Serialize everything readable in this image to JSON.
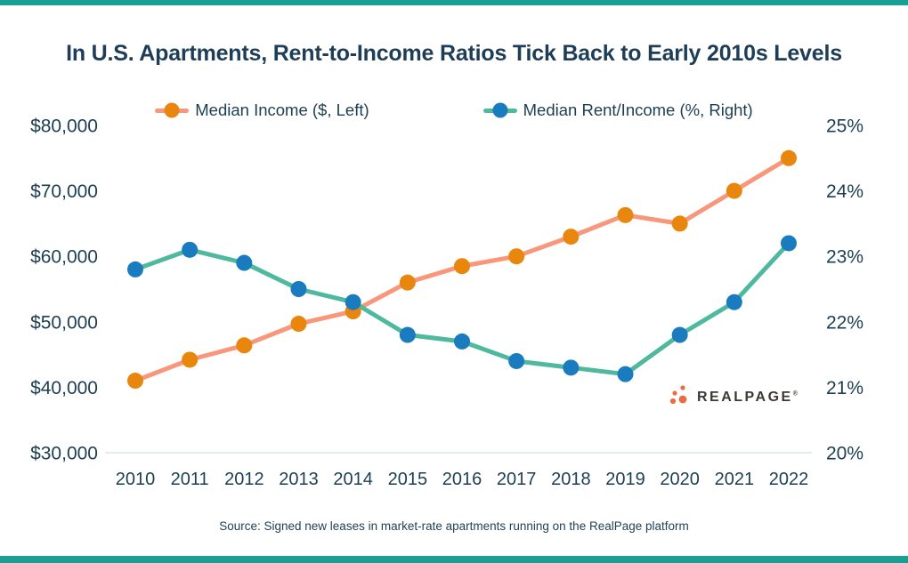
{
  "page": {
    "accent_color": "#18A094",
    "background": "#FFFFFF",
    "title_color": "#1E3D56",
    "axis_text_color": "#1C3E52"
  },
  "title": "In U.S. Apartments, Rent-to-Income Ratios Tick Back to Early 2010s Levels",
  "source": "Source: Signed new leases in market-rate apartments running on the RealPage platform",
  "logo": {
    "text": "REALPAGE",
    "reg_mark": "®",
    "text_color": "#3D3935",
    "dots_color": "#ED6B44"
  },
  "legend": [
    {
      "label": "Median Income ($, Left)"
    },
    {
      "label": "Median Rent/Income (%, Right)"
    }
  ],
  "chart_data": {
    "type": "line",
    "title": "In U.S. Apartments, Rent-to-Income Ratios Tick Back to Early 2010s Levels",
    "categories": [
      "2010",
      "2011",
      "2012",
      "2013",
      "2014",
      "2015",
      "2016",
      "2017",
      "2018",
      "2019",
      "2020",
      "2021",
      "2022"
    ],
    "series": [
      {
        "name": "Median Income ($, Left)",
        "axis": "left",
        "line_color": "#F8977C",
        "marker_color": "#E8860D",
        "values": [
          41000,
          44200,
          46400,
          49700,
          51600,
          56000,
          58500,
          60000,
          63000,
          66300,
          65000,
          70000,
          75000
        ]
      },
      {
        "name": "Median Rent/Income (%, Right)",
        "axis": "right",
        "line_color": "#4FB99F",
        "marker_color": "#1A7BBE",
        "values": [
          22.8,
          23.1,
          22.9,
          22.5,
          22.3,
          21.8,
          21.7,
          21.4,
          21.3,
          21.2,
          21.8,
          22.3,
          23.2
        ]
      }
    ],
    "left_axis": {
      "label": "Median Income ($)",
      "min": 30000,
      "max": 80000,
      "tick_step": 10000,
      "ticks": [
        "$80,000",
        "$70,000",
        "$60,000",
        "$50,000",
        "$40,000",
        "$30,000"
      ]
    },
    "right_axis": {
      "label": "Median Rent/Income (%)",
      "min": 20,
      "max": 25,
      "tick_step": 1,
      "ticks": [
        "25%",
        "24%",
        "23%",
        "22%",
        "21%",
        "20%"
      ]
    },
    "grid": false,
    "legend_position": "top"
  }
}
